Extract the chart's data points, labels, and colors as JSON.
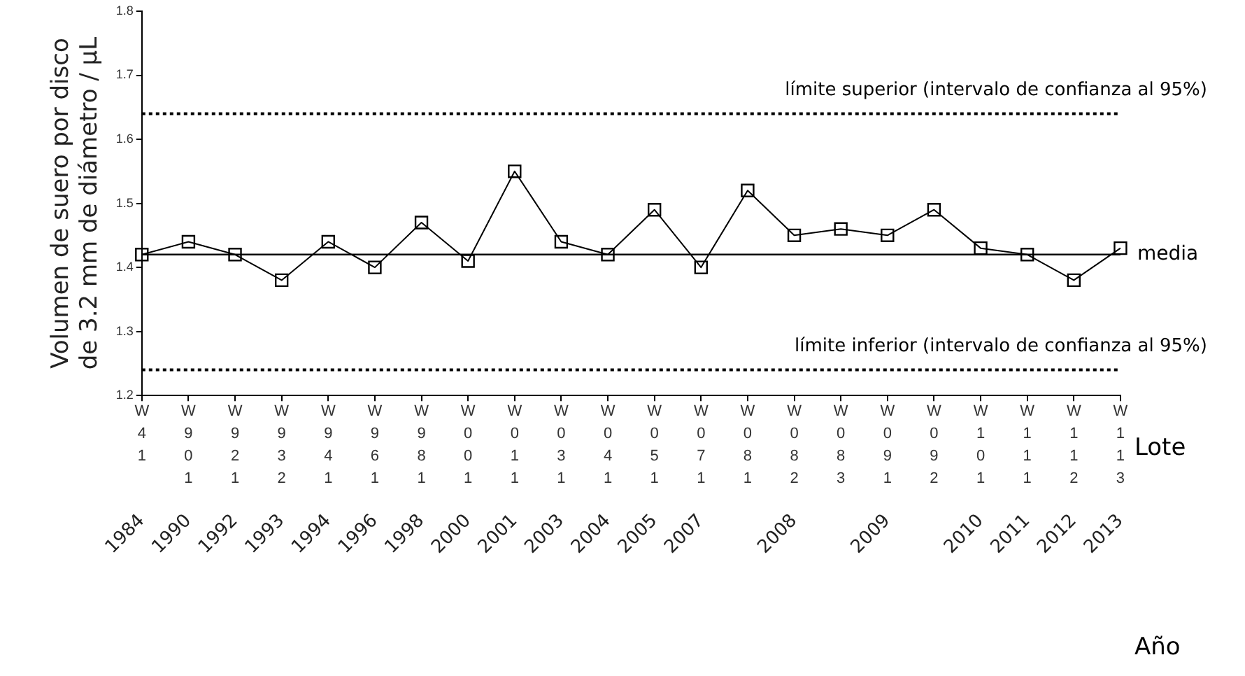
{
  "chart_data": {
    "type": "line",
    "ylabel": "Volumen de suero por disco de 3.2 mm de diámetro / µL",
    "categories": [
      "1984",
      "1990",
      "1992",
      "1993",
      "1994",
      "1996",
      "1998",
      "2000",
      "2001",
      "2003",
      "2004",
      "2005",
      "2007",
      null,
      "2008",
      null,
      "2009",
      null,
      "2010",
      "2011",
      "2012",
      "2013"
    ],
    "xlabel": "Año",
    "annotations": [
      "W41",
      "W901",
      "W921",
      "W932",
      "W941",
      "W961",
      "W981",
      "W001",
      "W011",
      "W031",
      "W041",
      "W051",
      "W071",
      "W081",
      "W082",
      "W083",
      "W091",
      "W092",
      "W101",
      "W111",
      "W112",
      "W113",
      "Lote"
    ],
    "series": [
      {
        "color": "#000000",
        "values": [
          1.42,
          1.44,
          1.42,
          1.38,
          1.44,
          1.4,
          1.47,
          1.41,
          1.55,
          1.44,
          1.42,
          1.49,
          1.4,
          1.52,
          1.45,
          1.46,
          1.45,
          1.49,
          1.43,
          1.42,
          1.38,
          1.43
        ]
      }
    ],
    "ylim": [
      1.2,
      1.8
    ],
    "yticks": [
      1.2,
      1.3,
      1.4,
      1.5,
      1.6,
      1.7,
      1.8
    ],
    "ref_lines": [
      {
        "axis": "y",
        "value": 1.64,
        "label": "límite superior (intervalo de confianza al 95%)",
        "color": "#000000",
        "line_style": "dotted"
      },
      {
        "axis": "y",
        "value": 1.42,
        "label": "media",
        "color": "#000000",
        "line_style": "solid"
      },
      {
        "axis": "y",
        "value": 1.24,
        "label": "límite inferior (intervalo de confianza al 95%)",
        "color": "#000000",
        "line_style": "dotted"
      }
    ],
    "marker": "square",
    "line_style": "solid",
    "grid": false,
    "legend": false
  }
}
